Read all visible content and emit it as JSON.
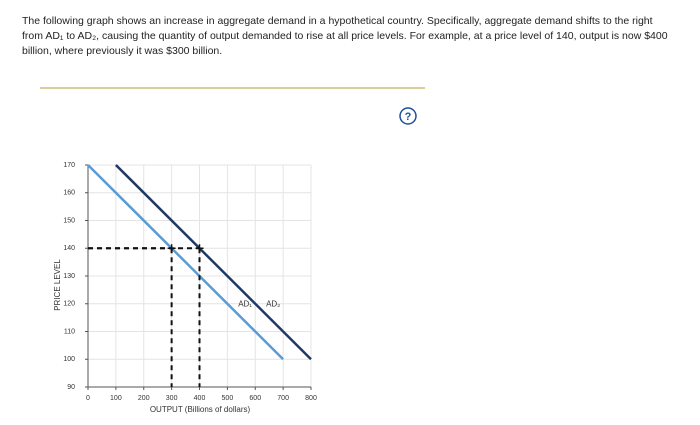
{
  "question": "The following graph shows an increase in aggregate demand in a hypothetical country. Specifically, aggregate demand shifts to the right from AD₁ to AD₂, causing the quantity of output demanded to rise at all price levels. For example, at a price level of 140, output is now $400 billion, where previously it was $300 billion.",
  "help": "?",
  "chart_data": {
    "type": "line",
    "x_label": "OUTPUT (Billions of dollars)",
    "y_label": "PRICE LEVEL",
    "xlim": [
      0,
      800
    ],
    "xticks": [
      0,
      100,
      200,
      300,
      400,
      500,
      600,
      700,
      800
    ],
    "ylim": [
      90,
      170
    ],
    "yticks": [
      90,
      100,
      110,
      120,
      130,
      140,
      150,
      160,
      170
    ],
    "grid": true,
    "series": [
      {
        "name": "AD₁",
        "color": "#5b9bd5",
        "x": [
          0,
          700
        ],
        "values": [
          170,
          100
        ]
      },
      {
        "name": "AD₂",
        "color": "#1f3864",
        "x": [
          100,
          800
        ],
        "values": [
          170,
          100
        ]
      }
    ],
    "points": {
      "x": [
        300,
        400
      ],
      "values": [
        140,
        140
      ]
    }
  }
}
